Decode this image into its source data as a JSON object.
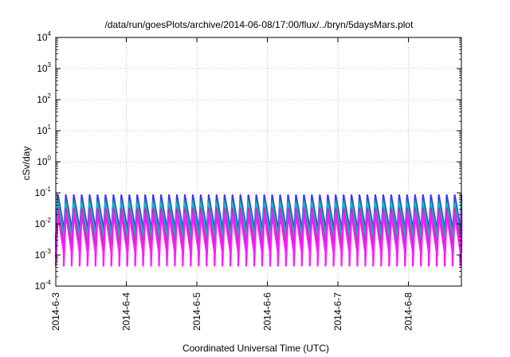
{
  "chart_data": {
    "type": "line",
    "title": "/data/run/goesPlots/archive/2014-06-08/17:00/flux/../bryn/5daysMars.plot",
    "xlabel": "Coordinated Universal Time (UTC)",
    "ylabel": "cSv/day",
    "yscale": "log",
    "ylim": [
      0.0001,
      10000
    ],
    "ytick_labels": [
      {
        "base": "10",
        "exp": "4"
      },
      {
        "base": "10",
        "exp": "3"
      },
      {
        "base": "10",
        "exp": "2"
      },
      {
        "base": "10",
        "exp": "1"
      },
      {
        "base": "10",
        "exp": "0"
      },
      {
        "base": "10",
        "exp": "-1"
      },
      {
        "base": "10",
        "exp": "-2"
      },
      {
        "base": "10",
        "exp": "-3"
      },
      {
        "base": "10",
        "exp": "-4"
      }
    ],
    "x_range_days": [
      "2014-6-3",
      "2014-6-8 18:00"
    ],
    "xtick_labels": [
      "2014-6-3",
      "2014-6-4",
      "2014-6-5",
      "2014-6-6",
      "2014-6-7",
      "2014-6-8"
    ],
    "grid": true,
    "legend": "none",
    "sawtooth_period_hours": 2.7,
    "series": [
      {
        "color": "#3a3aff",
        "peak": 0.085,
        "trough": 0.0032
      },
      {
        "color": "#1a9090",
        "peak": 0.055,
        "trough": 0.0022
      },
      {
        "color": "#00c4c4",
        "peak": 0.045,
        "trough": 0.0016
      },
      {
        "color": "#b03ab0",
        "peak": 0.032,
        "trough": 0.00085
      },
      {
        "color": "#ff1aff",
        "peak": 0.022,
        "trough": 0.00045
      }
    ]
  }
}
